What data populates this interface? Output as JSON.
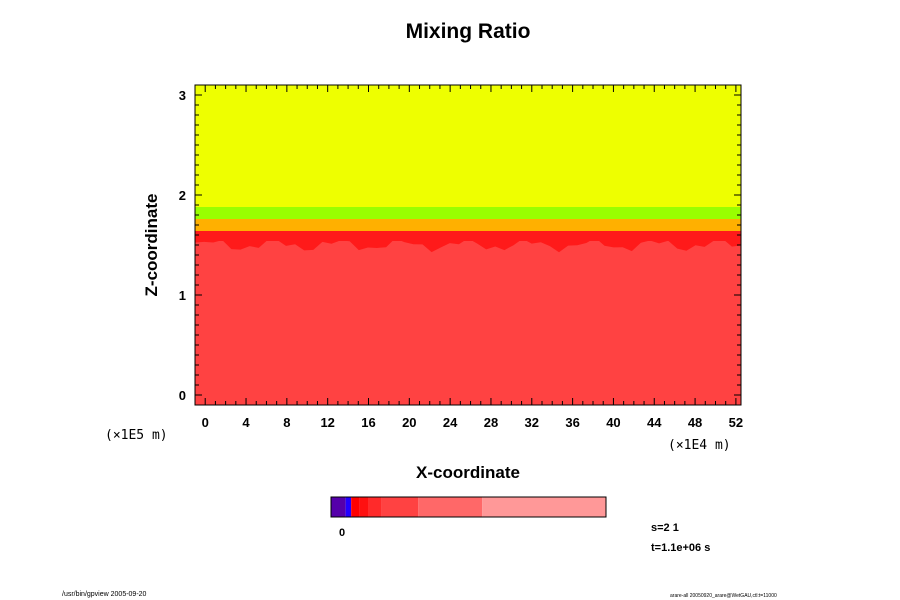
{
  "chart_data": {
    "type": "heatmap",
    "title": "Mixing Ratio",
    "xlabel": "X-coordinate",
    "ylabel": "Z-coordinate",
    "x_scale_label": "(×1E4 m)",
    "y_scale_label": "(×1E5 m)",
    "xlim": [
      -1,
      52.5
    ],
    "ylim": [
      -0.1,
      3.1
    ],
    "x_ticks": [
      0,
      4,
      8,
      12,
      16,
      20,
      24,
      28,
      32,
      36,
      40,
      44,
      48,
      52
    ],
    "y_ticks": [
      0,
      1,
      2,
      3
    ],
    "layers": [
      {
        "region": "upper",
        "z_from": 1.88,
        "z_to": 3.1,
        "color": "#eeff00"
      },
      {
        "region": "transition-green",
        "z_from": 1.76,
        "z_to": 1.88,
        "color": "#99ff00"
      },
      {
        "region": "transition-orange",
        "z_from": 1.64,
        "z_to": 1.76,
        "color": "#ffb000"
      },
      {
        "region": "transition-dark-red",
        "z_from": 1.54,
        "z_to": 1.64,
        "color": "#ff1a1a"
      },
      {
        "region": "lower",
        "z_from": -0.1,
        "z_to": 1.54,
        "color": "#ff4242"
      }
    ],
    "colorbar": {
      "label": "0",
      "segments": [
        {
          "color": "#5500aa",
          "weight": 1.6
        },
        {
          "color": "#2200ff",
          "weight": 0.6
        },
        {
          "color": "#ff0000",
          "weight": 0.9
        },
        {
          "color": "#ff1010",
          "weight": 1.0
        },
        {
          "color": "#ff2a2a",
          "weight": 1.4
        },
        {
          "color": "#ff4242",
          "weight": 4.0
        },
        {
          "color": "#ff6868",
          "weight": 7.0
        },
        {
          "color": "#ff9898",
          "weight": 13.5
        }
      ]
    }
  },
  "info": {
    "s_label": "s=2 1",
    "t_label": "t=1.1e+06 s",
    "footer_left": "/usr/bin/gpview 2005-09-20",
    "footer_right": "arare-all 20050920_arare@WetGAU,ctl:t=11000"
  }
}
